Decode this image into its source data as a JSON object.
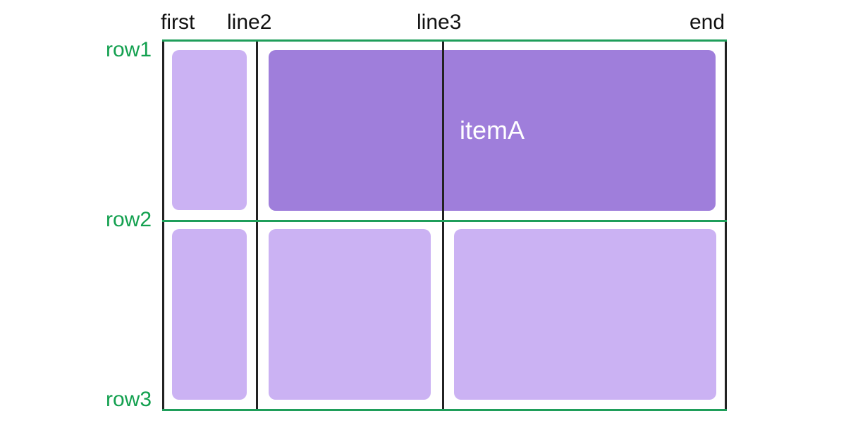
{
  "diagram": {
    "column_lines": [
      "first",
      "line2",
      "line3",
      "end"
    ],
    "row_lines": [
      "row1",
      "row2",
      "row3"
    ],
    "item_label": "itemA"
  },
  "colors": {
    "column_line": "#222222",
    "row_line": "#1f9e5a",
    "row_label": "#13a04f",
    "cell_light": "#cbb2f3",
    "cell_item": "#9f7edb",
    "item_text": "#ffffff"
  }
}
